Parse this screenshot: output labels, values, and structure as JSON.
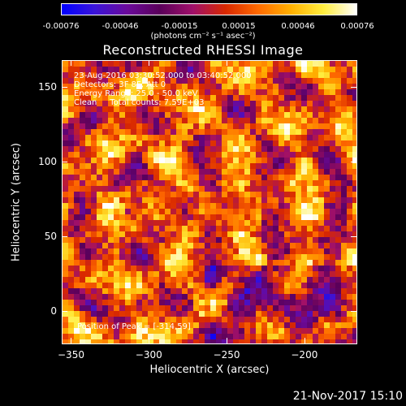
{
  "colorbar": {
    "ticks": [
      "-0.00076",
      "-0.00046",
      "-0.00015",
      "0.00015",
      "0.00046",
      "0.00076"
    ],
    "unit": "(photons cm⁻² s⁻¹ asec⁻²)",
    "colors": [
      "#0000ff",
      "#3a14d8",
      "#6a0a9a",
      "#5a005a",
      "#a0106a",
      "#d82800",
      "#ff6a00",
      "#ffb000",
      "#ffee40",
      "#ffffff"
    ]
  },
  "chart_data": {
    "type": "heatmap",
    "title": "Reconstructed RHESSI Image",
    "xlabel": "Heliocentric X (arcsec)",
    "ylabel": "Heliocentric Y (arcsec)",
    "xlim": [
      -356,
      -166
    ],
    "ylim": [
      -22,
      168
    ],
    "xticks": [
      -350,
      -300,
      -250,
      -200
    ],
    "yticks": [
      0,
      50,
      100,
      150
    ],
    "value_range": [
      -0.00076,
      0.00076
    ],
    "grid": false,
    "annotations": [
      "23-Aug-2016 03:30:52.000 to 03:40:52.000",
      "Detectors: 3F 8F, Att 0",
      "Energy Range: 25.0 - 50.0 keV",
      "Clean     Total counts: 7.59E+03"
    ],
    "peak_label": "Position of Peak = [-314,59]",
    "peak": [
      -314,
      59
    ]
  },
  "timestamp": "21-Nov-2017 15:10"
}
